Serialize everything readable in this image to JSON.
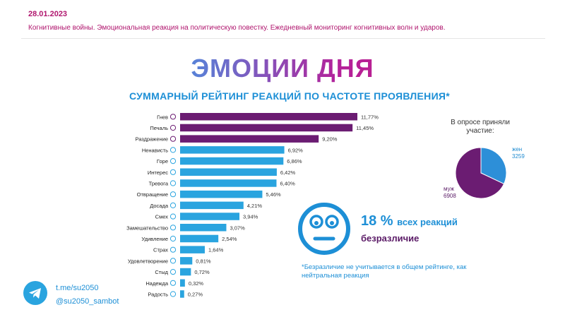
{
  "header": {
    "date": "28.01.2023",
    "subtitle": "Когнитивные войны. Эмоциональная реакция на политическую повестку. Ежедневный мониторинг когнитивных волн и ударов."
  },
  "main": {
    "title": "ЭМОЦИИ ДНЯ",
    "chart_title": "СУММАРНЫЙ РЕЙТИНГ РЕАКЦИЙ ПО ЧАСТОТЕ ПРОЯВЛЕНИЯ*"
  },
  "survey": {
    "title": "В опросе приняли участие:",
    "women_label": "жен",
    "women_value": "3259",
    "men_label": "муж",
    "men_value": "6908"
  },
  "indifference": {
    "percent": "18 %",
    "caption": "всех реакций",
    "label": "безразличие",
    "note": "*Безразличие не учитывается в общем рейтинге, как нейтральная реакция"
  },
  "footer": {
    "link": "t.me/su2050",
    "handle": "@su2050_sambot"
  },
  "colors": {
    "purple": "#6b1c72",
    "blue": "#2aa4df",
    "women": "#2d8fd8",
    "men": "#6b1c72"
  },
  "icons": [
    "telegram-icon",
    "neutral-face-icon",
    "emoji-icon"
  ],
  "chart_data": [
    {
      "type": "bar",
      "orientation": "horizontal",
      "categories": [
        "Гнев",
        "Печаль",
        "Раздражение",
        "Ненависть",
        "Горе",
        "Интерес",
        "Тревога",
        "Отвращение",
        "Досада",
        "Смех",
        "Замешательство",
        "Удивление",
        "Страх",
        "Удовлетворение",
        "Стыд",
        "Надежда",
        "Радость"
      ],
      "values": [
        11.77,
        11.45,
        9.2,
        6.92,
        6.86,
        6.42,
        6.4,
        5.46,
        4.21,
        3.94,
        3.07,
        2.54,
        1.64,
        0.81,
        0.72,
        0.32,
        0.27
      ],
      "value_labels": [
        "11,77%",
        "11,45%",
        "9,20%",
        "6,92%",
        "6,86%",
        "6,42%",
        "6,40%",
        "5,46%",
        "4,21%",
        "3,94%",
        "3,07%",
        "2,54%",
        "1,64%",
        "0,81%",
        "0,72%",
        "0,32%",
        "0,27%"
      ],
      "highlight_top": 3
    },
    {
      "type": "pie",
      "categories": [
        "жен",
        "муж"
      ],
      "values": [
        3259,
        6908
      ]
    }
  ]
}
